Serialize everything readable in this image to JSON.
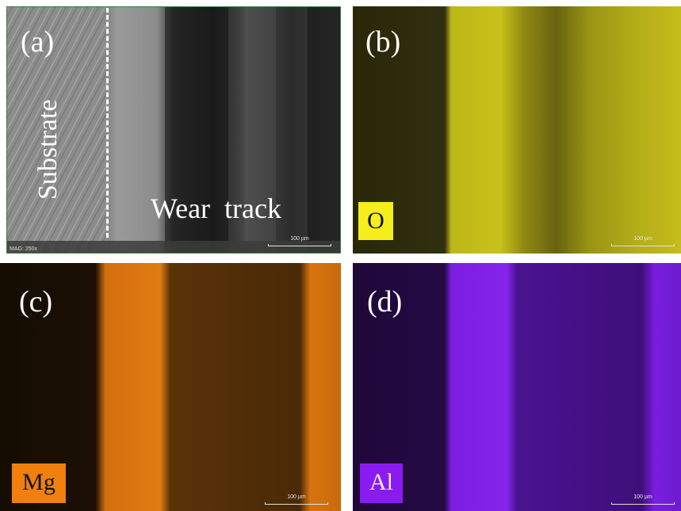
{
  "panels": {
    "a": {
      "letter": "(a)",
      "substrate_label": "Substrate",
      "wear_label": "Wear  track",
      "mag_text": "MAG: 250x",
      "scale_text": "100 µm"
    },
    "b": {
      "letter": "(b)",
      "element": "O",
      "element_color": "#f5ee1a",
      "scale_text": "100 µm"
    },
    "c": {
      "letter": "(c)",
      "element": "Mg",
      "element_color": "#f07f0c",
      "scale_text": "100 µm"
    },
    "d": {
      "letter": "(d)",
      "element": "Al",
      "element_color": "#8a1bf0",
      "scale_text": "100 µm"
    }
  },
  "colors": {
    "oxygen_map": "#e8e020",
    "magnesium_map": "#e07a14",
    "aluminium_map": "#7a1ee6",
    "sem_gray": "#7a7a7a"
  }
}
